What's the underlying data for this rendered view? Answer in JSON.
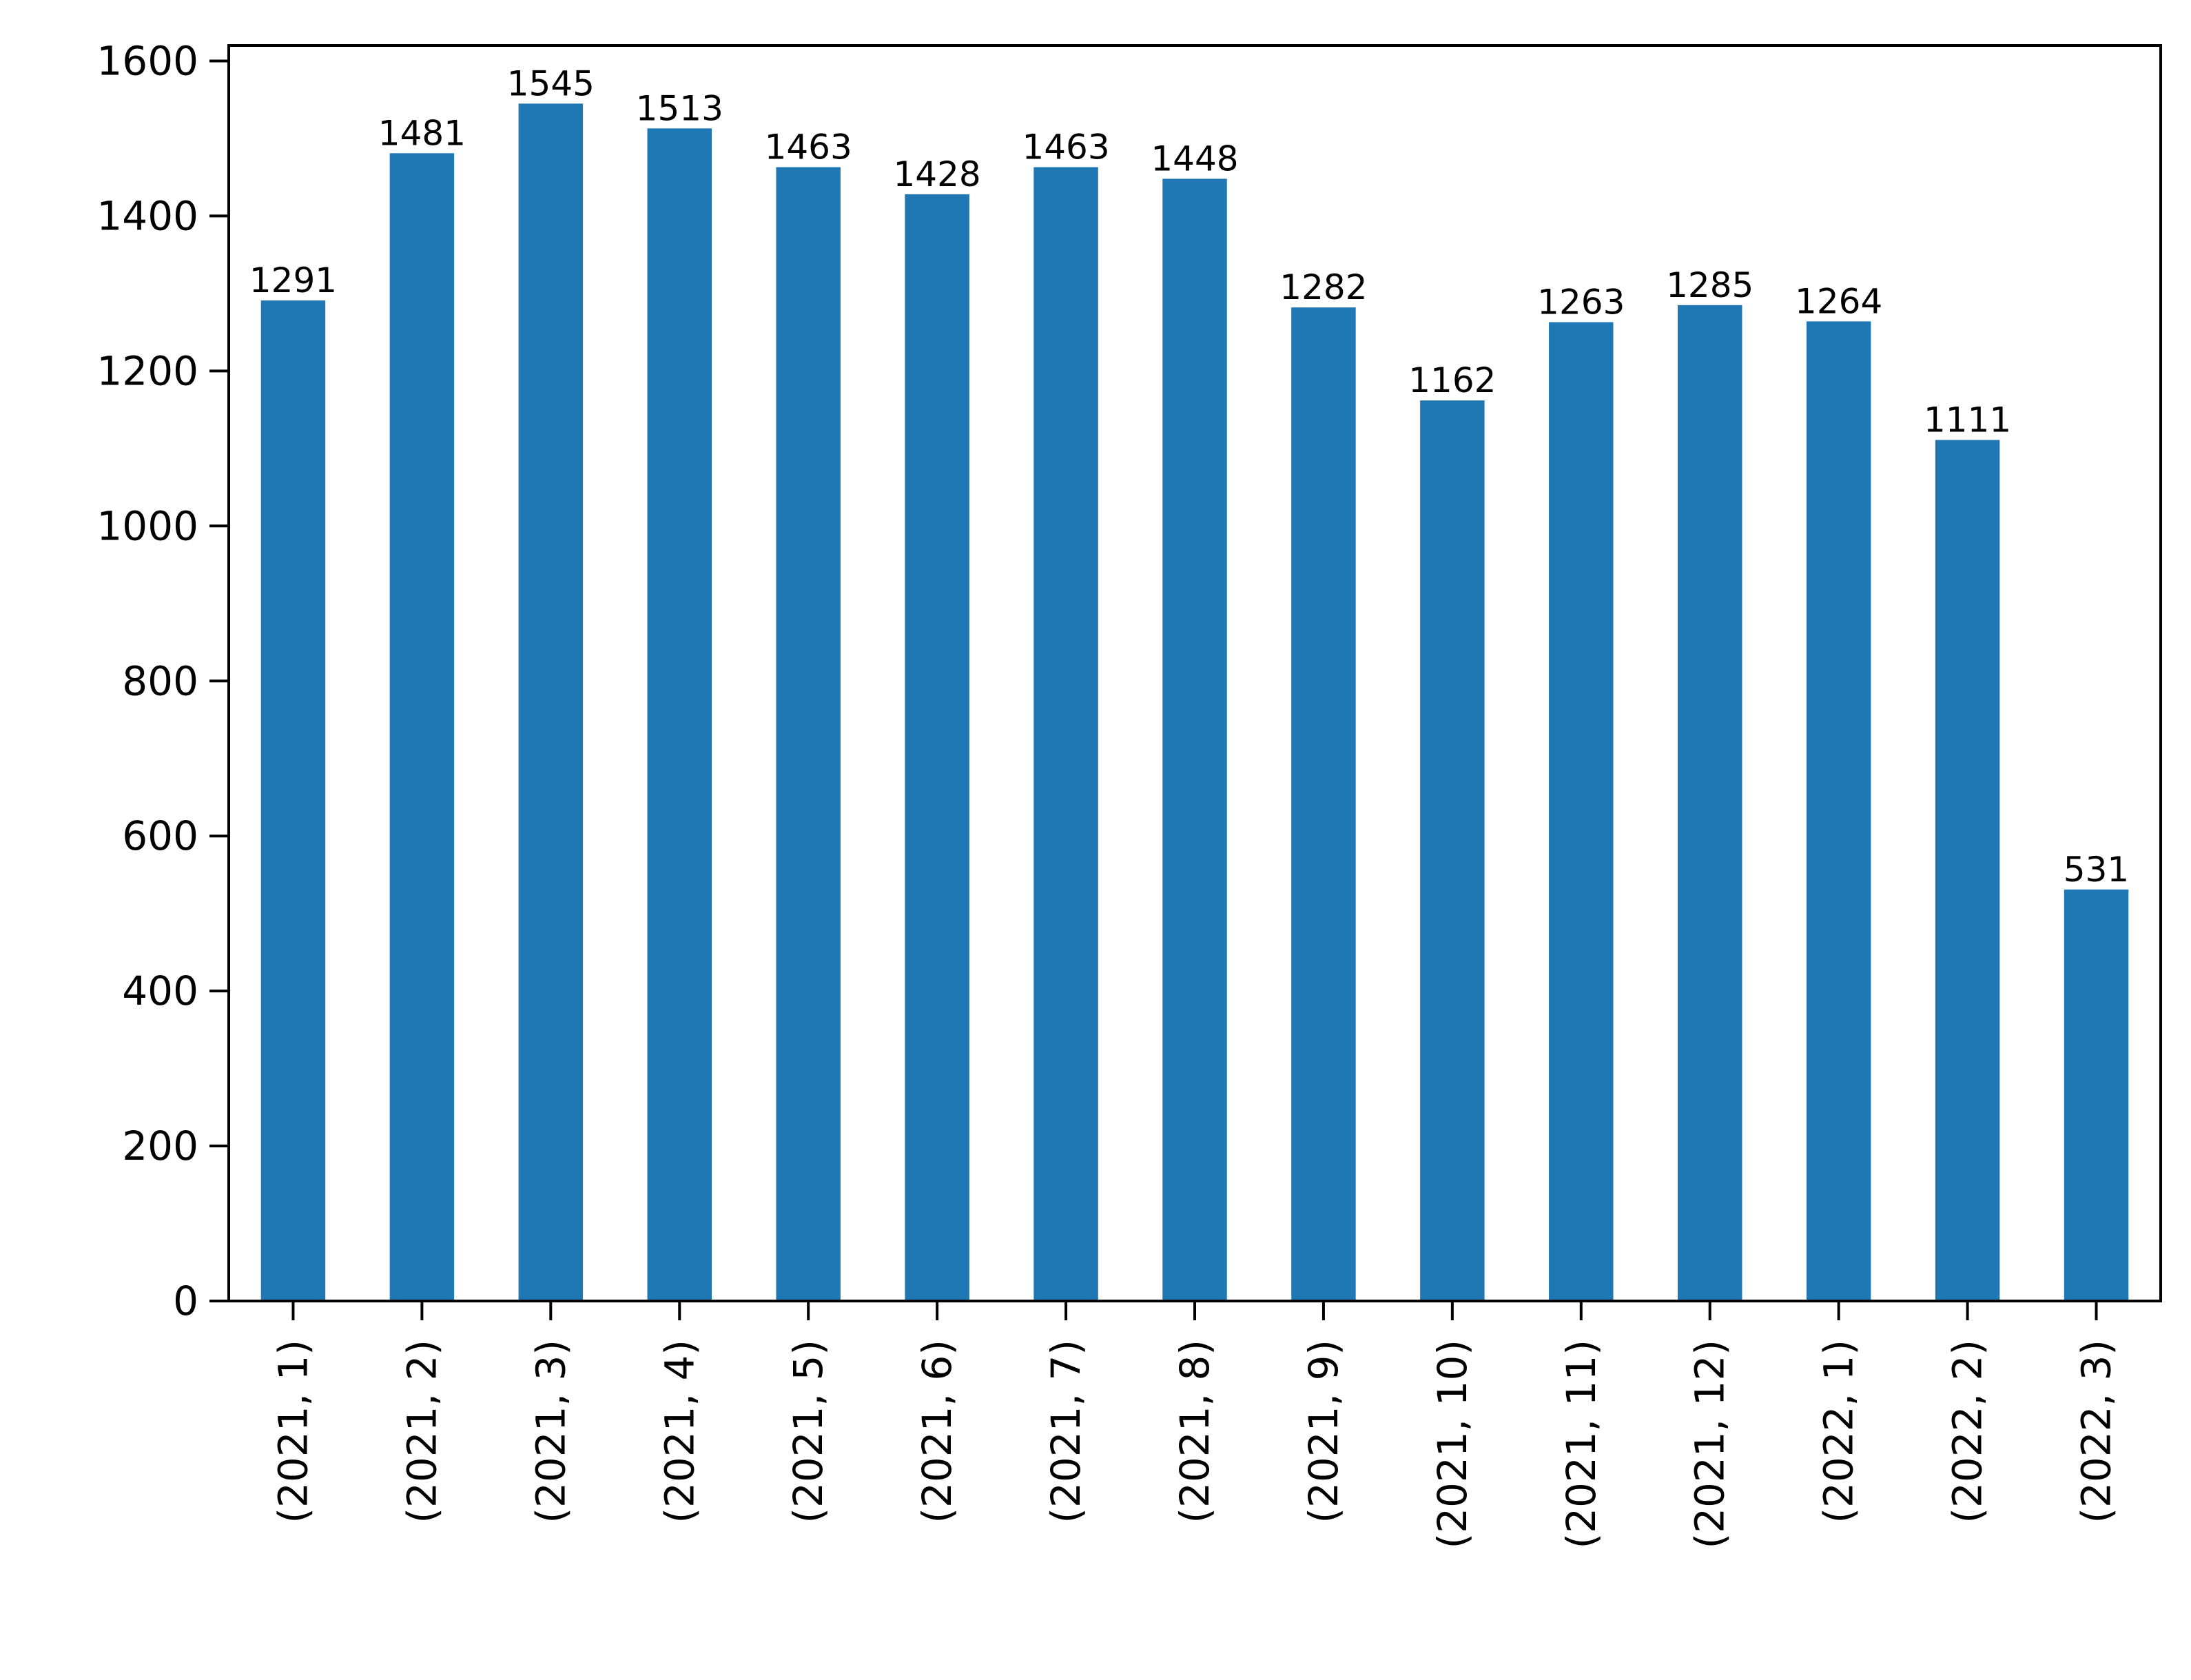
{
  "chart_data": {
    "type": "bar",
    "title": "",
    "xlabel": "",
    "ylabel": "",
    "categories": [
      "(2021, 1)",
      "(2021, 2)",
      "(2021, 3)",
      "(2021, 4)",
      "(2021, 5)",
      "(2021, 6)",
      "(2021, 7)",
      "(2021, 8)",
      "(2021, 9)",
      "(2021, 10)",
      "(2021, 11)",
      "(2021, 12)",
      "(2022, 1)",
      "(2022, 2)",
      "(2022, 3)"
    ],
    "values": [
      1291,
      1481,
      1545,
      1513,
      1463,
      1428,
      1463,
      1448,
      1282,
      1162,
      1263,
      1285,
      1264,
      1111,
      531
    ],
    "data_labels": [
      "1291",
      "1481",
      "1545",
      "1513",
      "1463",
      "1428",
      "1463",
      "1448",
      "1282",
      "1162",
      "1263",
      "1285",
      "1264",
      "1111",
      "531"
    ],
    "ylim": [
      0,
      1620
    ],
    "yticks": [
      0,
      200,
      400,
      600,
      800,
      1000,
      1200,
      1400,
      1600
    ],
    "ytick_labels": [
      "0",
      "200",
      "400",
      "600",
      "800",
      "1000",
      "1200",
      "1400",
      "1600"
    ],
    "bar_color": "#1f77b4",
    "grid": false,
    "legend": "none"
  }
}
